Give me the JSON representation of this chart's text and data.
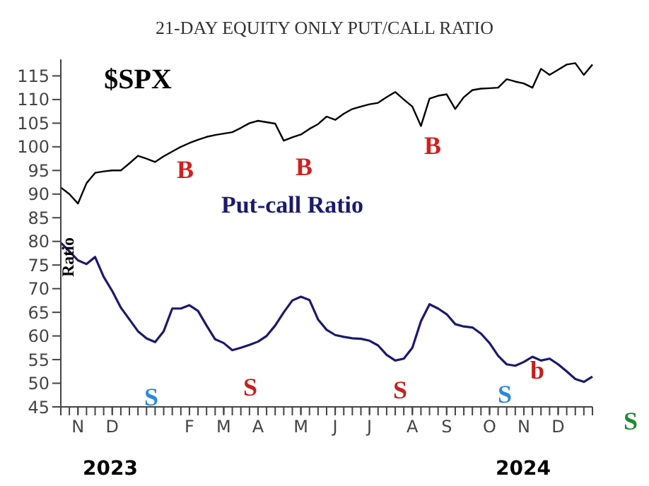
{
  "chart_data": {
    "type": "line",
    "title": "21-DAY EQUITY ONLY PUT/CALL RATIO",
    "ylabel": "Ratio",
    "categories": [
      null,
      null,
      "N",
      null,
      null,
      null,
      "D",
      null,
      null,
      null,
      null,
      null,
      null,
      null,
      null,
      "F",
      null,
      null,
      null,
      "M",
      null,
      null,
      null,
      "A",
      null,
      null,
      null,
      null,
      "M",
      null,
      null,
      null,
      "J",
      null,
      null,
      null,
      "J",
      null,
      null,
      null,
      null,
      "A",
      null,
      null,
      null,
      "S",
      null,
      null,
      null,
      null,
      "O",
      null,
      null,
      null,
      "N",
      null,
      null,
      null,
      "D",
      null,
      null,
      null,
      null
    ],
    "ylim": [
      45,
      118.5
    ],
    "yticks": [
      45,
      50,
      55,
      60,
      65,
      70,
      75,
      80,
      85,
      90,
      95,
      100,
      105,
      110,
      115
    ],
    "series": [
      {
        "name": "$SPX",
        "color": "#000000",
        "values": [
          91.4,
          90,
          88,
          92.3,
          94.5,
          94.8,
          95,
          95,
          96.5,
          98.1,
          97.5,
          96.8,
          98,
          99,
          100,
          100.8,
          101.5,
          102.1,
          102.5,
          102.8,
          103.1,
          104,
          105,
          105.5,
          105.2,
          104.9,
          101.3,
          102,
          102.6,
          103.8,
          104.8,
          106.4,
          105.7,
          107,
          108,
          108.5,
          109,
          109.3,
          110.5,
          111.6,
          110,
          108.5,
          104.4,
          110.2,
          110.8,
          111.1,
          108,
          110.5,
          112,
          112.3,
          112.4,
          112.5,
          114.3,
          113.8,
          113.4,
          112.5,
          116.5,
          115.2,
          116.3,
          117.4,
          117.7,
          115.2,
          117.4
        ]
      },
      {
        "name": "Put-call Ratio",
        "color": "#1a1a6e",
        "values": [
          79.7,
          77.9,
          76,
          75.2,
          76.7,
          72.5,
          69.5,
          66,
          63.5,
          61,
          59.5,
          58.7,
          61,
          65.8,
          65.8,
          66.5,
          65.3,
          62.2,
          59.3,
          58.5,
          57,
          57.5,
          58.1,
          58.8,
          60,
          62.2,
          65,
          67.5,
          68.3,
          67.6,
          63.5,
          61.3,
          60.2,
          59.8,
          59.5,
          59.4,
          59,
          58,
          56,
          54.8,
          55.2,
          57.5,
          63.1,
          66.7,
          65.8,
          64.6,
          62.5,
          62,
          61.8,
          60.5,
          58.5,
          55.8,
          54,
          53.7,
          54.5,
          55.6,
          54.8,
          55.2,
          54,
          52.5,
          50.9,
          50.3,
          51.4
        ]
      }
    ],
    "annotations": [
      "B",
      "S",
      "S",
      "B",
      "S",
      "B",
      "S",
      "b",
      "S",
      "2023",
      "2024"
    ]
  }
}
